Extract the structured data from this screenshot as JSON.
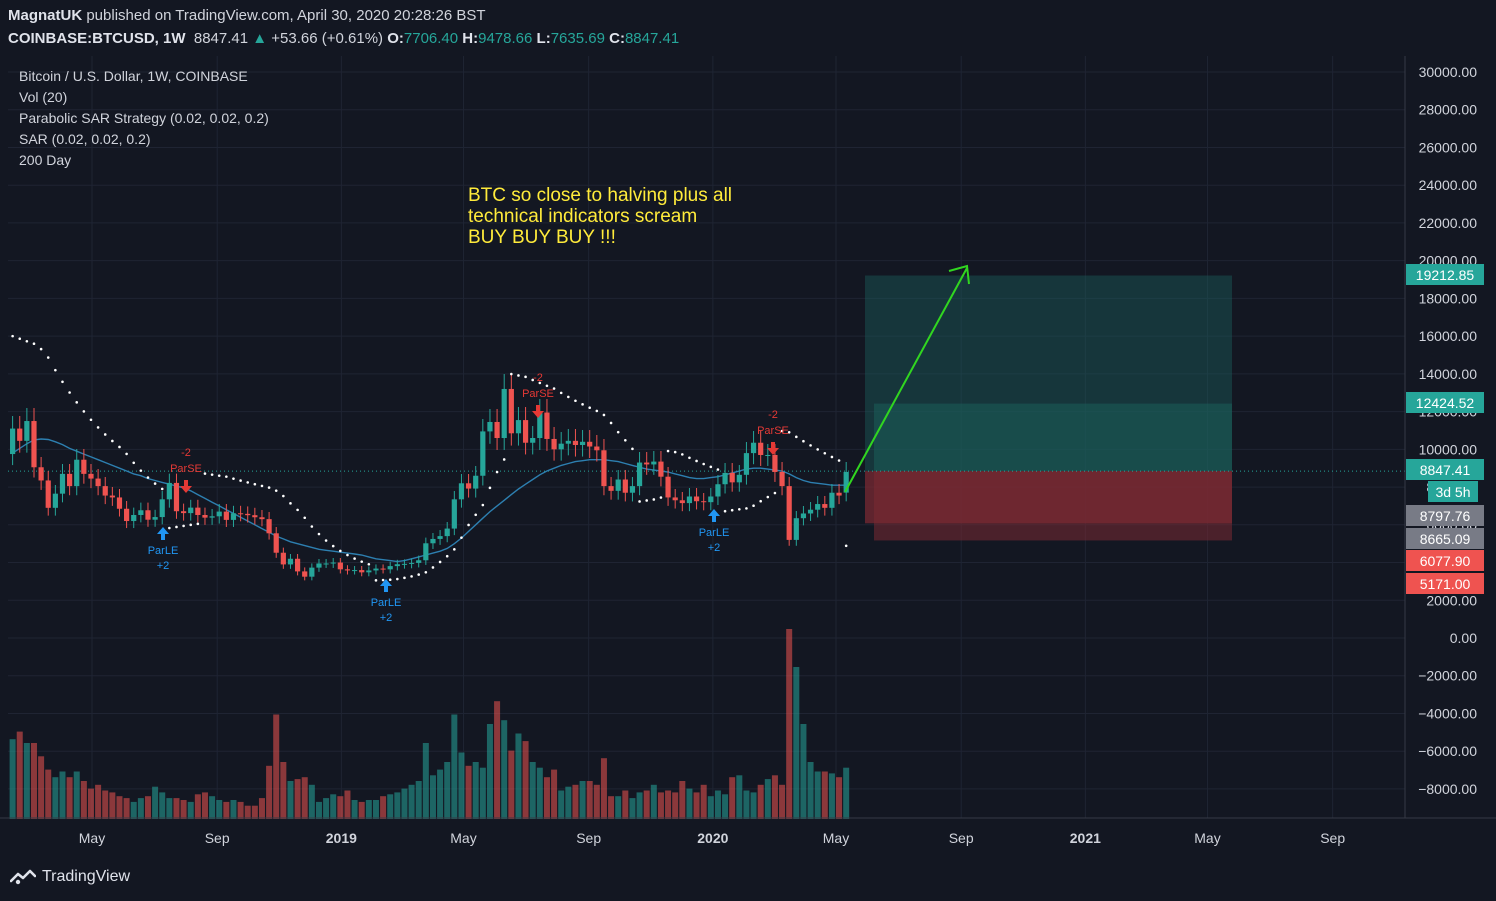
{
  "header": {
    "author": "MagnatUK",
    "published_text": "published on TradingView.com, April 30, 2020 20:28:26 BST",
    "symbol": "COINBASE:BTCUSD, 1W",
    "price": "8847.41",
    "change": "+53.66 (+0.61%)",
    "o_label": "O:",
    "o_value": "7706.40",
    "h_label": "H:",
    "h_value": "9478.66",
    "l_label": "L:",
    "l_value": "7635.69",
    "c_label": "C:",
    "c_value": "8847.41"
  },
  "legend": [
    "Bitcoin / U.S. Dollar, 1W, COINBASE",
    "Vol (20)",
    "Parabolic SAR Strategy (0.02, 0.02, 0.2)",
    "SAR (0.02, 0.02, 0.2)",
    "200 Day"
  ],
  "annotation": {
    "lines": [
      "BTC so close to halving plus all",
      "technical indicators scream",
      "BUY BUY BUY !!!"
    ],
    "color": "#ffeb3b"
  },
  "colors": {
    "up": "#26a69a",
    "down": "#ef5350",
    "ma": "#2d7fb0",
    "target_zone": "#1b5e5a",
    "stop_zone": "#7a2a33",
    "arrow": "#31d620",
    "signal_long": "#2196f3",
    "signal_short": "#e53935"
  },
  "signals": {
    "long_label": "ParLE",
    "long_qty": "+2",
    "short_label": "ParSE",
    "short_qty": "-2"
  },
  "price_badges": [
    {
      "value": "19212.85",
      "color": "#26a69a"
    },
    {
      "value": "12424.52",
      "color": "#26a69a"
    },
    {
      "value": "8847.41",
      "color": "#26a69a"
    },
    {
      "value": "3d 5h",
      "color": "#26a69a"
    },
    {
      "value": "8797.76",
      "color": "#787b86"
    },
    {
      "value": "8665.09",
      "color": "#787b86"
    },
    {
      "value": "6077.90",
      "color": "#ef5350"
    },
    {
      "value": "5171.00",
      "color": "#ef5350"
    }
  ],
  "footer": {
    "brand": "TradingView"
  },
  "chart_data": {
    "type": "candlestick",
    "title": "Bitcoin / U.S. Dollar, 1W, COINBASE",
    "ylim": [
      -9500,
      31000
    ],
    "y_ticks": [
      "30000.00",
      "28000.00",
      "26000.00",
      "24000.00",
      "22000.00",
      "20000.00",
      "18000.00",
      "16000.00",
      "14000.00",
      "12000.00",
      "10000.00",
      "8000.00",
      "6000.00",
      "4000.00",
      "2000.00",
      "0.00",
      "−2000.00",
      "−4000.00",
      "−6000.00",
      "−8000.00"
    ],
    "x_ticks": [
      {
        "label": "May",
        "date": "2018-05-01",
        "bold": false
      },
      {
        "label": "Sep",
        "date": "2018-09-01",
        "bold": false
      },
      {
        "label": "2019",
        "date": "2019-01-01",
        "bold": true
      },
      {
        "label": "May",
        "date": "2019-05-01",
        "bold": false
      },
      {
        "label": "Sep",
        "date": "2019-09-01",
        "bold": false
      },
      {
        "label": "2020",
        "date": "2020-01-01",
        "bold": true
      },
      {
        "label": "May",
        "date": "2020-05-01",
        "bold": false
      },
      {
        "label": "Sep",
        "date": "2020-09-01",
        "bold": false
      },
      {
        "label": "2021",
        "date": "2021-01-01",
        "bold": true
      },
      {
        "label": "May",
        "date": "2021-05-01",
        "bold": false
      },
      {
        "label": "Sep",
        "date": "2021-09-01",
        "bold": false
      }
    ],
    "candle_start": "2018-02-12",
    "candle_interval_days": 7,
    "close": [
      11100,
      10450,
      11500,
      9050,
      8350,
      6900,
      7650,
      8700,
      8050,
      9450,
      8700,
      8450,
      8050,
      7550,
      7450,
      6850,
      6200,
      6520,
      6770,
      6270,
      6410,
      7350,
      8220,
      6720,
      6620,
      6910,
      6520,
      6380,
      6450,
      6700,
      6260,
      6610,
      6580,
      6510,
      6400,
      6300,
      5550,
      4520,
      3900,
      4200,
      3530,
      3250,
      3730,
      3950,
      3950,
      4000,
      3640,
      3580,
      3600,
      3480,
      3580,
      3680,
      3640,
      3810,
      3910,
      3930,
      3980,
      4120,
      5020,
      5250,
      5400,
      5800,
      7350,
      8200,
      7920,
      8600,
      10950,
      11450,
      10600,
      13200,
      10850,
      11550,
      10350,
      10600,
      11950,
      10550,
      10000,
      10300,
      10450,
      10230,
      10400,
      10150,
      9950,
      8050,
      7800,
      8400,
      7700,
      8050,
      9300,
      9200,
      9350,
      8550,
      7450,
      7300,
      7150,
      7500,
      7250,
      7200,
      7500,
      8150,
      8750,
      8250,
      8650,
      9800,
      10350,
      9700,
      9700,
      8800,
      8050,
      5200,
      6350,
      6600,
      6800,
      7100,
      6900,
      7700,
      7550,
      8800
    ],
    "open": [
      9750,
      11100,
      10450,
      11500,
      9050,
      8350,
      6900,
      7650,
      8700,
      8050,
      9450,
      8700,
      8450,
      8050,
      7550,
      7450,
      6850,
      6200,
      6520,
      6770,
      6270,
      6410,
      7350,
      8220,
      6720,
      6620,
      6910,
      6520,
      6380,
      6450,
      6700,
      6260,
      6610,
      6580,
      6510,
      6400,
      6300,
      5550,
      4520,
      3900,
      4200,
      3530,
      3250,
      3730,
      3950,
      3950,
      4000,
      3640,
      3580,
      3600,
      3480,
      3580,
      3680,
      3640,
      3810,
      3910,
      3930,
      3980,
      4120,
      5020,
      5250,
      5400,
      5800,
      7350,
      8200,
      7920,
      8600,
      10950,
      11450,
      10600,
      13200,
      10850,
      11550,
      10350,
      10600,
      11950,
      10550,
      10000,
      10300,
      10450,
      10230,
      10400,
      10150,
      9950,
      8050,
      7800,
      8400,
      7700,
      8050,
      9300,
      9200,
      9350,
      8550,
      7450,
      7300,
      7150,
      7500,
      7250,
      7200,
      7500,
      8150,
      8750,
      8250,
      8650,
      9800,
      10350,
      9700,
      9700,
      8800,
      8050,
      5200,
      6350,
      6600,
      6800,
      7100,
      6900,
      7700,
      7706
    ],
    "volume_relative": [
      0.42,
      0.46,
      0.4,
      0.4,
      0.33,
      0.26,
      0.22,
      0.25,
      0.22,
      0.25,
      0.2,
      0.16,
      0.18,
      0.15,
      0.14,
      0.12,
      0.11,
      0.09,
      0.11,
      0.12,
      0.17,
      0.14,
      0.11,
      0.11,
      0.1,
      0.09,
      0.13,
      0.14,
      0.12,
      0.1,
      0.09,
      0.1,
      0.09,
      0.07,
      0.07,
      0.11,
      0.28,
      0.55,
      0.3,
      0.2,
      0.21,
      0.22,
      0.18,
      0.09,
      0.11,
      0.13,
      0.12,
      0.15,
      0.1,
      0.09,
      0.1,
      0.1,
      0.12,
      0.13,
      0.14,
      0.16,
      0.18,
      0.2,
      0.4,
      0.23,
      0.26,
      0.3,
      0.55,
      0.35,
      0.28,
      0.3,
      0.27,
      0.5,
      0.62,
      0.52,
      0.36,
      0.45,
      0.41,
      0.3,
      0.27,
      0.22,
      0.26,
      0.15,
      0.17,
      0.18,
      0.2,
      0.2,
      0.18,
      0.32,
      0.12,
      0.12,
      0.15,
      0.11,
      0.14,
      0.15,
      0.18,
      0.14,
      0.15,
      0.14,
      0.2,
      0.16,
      0.14,
      0.18,
      0.12,
      0.15,
      0.13,
      0.22,
      0.23,
      0.15,
      0.14,
      0.18,
      0.21,
      0.23,
      0.18,
      1.0,
      0.8,
      0.5,
      0.3,
      0.25,
      0.25,
      0.24,
      0.22,
      0.27
    ],
    "ma_200day": [
      9800,
      10050,
      10300,
      10500,
      10550,
      10520,
      10400,
      10250,
      10050,
      9900,
      9750,
      9600,
      9450,
      9300,
      9150,
      9000,
      8850,
      8700,
      8600,
      8450,
      8350,
      8250,
      8150,
      8050,
      7950,
      7800,
      7600,
      7400,
      7200,
      7000,
      6800,
      6600,
      6400,
      6200,
      6000,
      5800,
      5600,
      5400,
      5250,
      5100,
      5000,
      4900,
      4800,
      4700,
      4650,
      4600,
      4550,
      4500,
      4450,
      4400,
      4300,
      4200,
      4150,
      4100,
      4050,
      4100,
      4200,
      4300,
      4400,
      4500,
      4600,
      4750,
      5000,
      5300,
      5650,
      6000,
      6350,
      6700,
      7000,
      7300,
      7600,
      7900,
      8150,
      8400,
      8650,
      8850,
      9000,
      9150,
      9250,
      9350,
      9400,
      9450,
      9450,
      9450,
      9400,
      9350,
      9250,
      9150,
      9050,
      8950,
      8900,
      8850,
      8800,
      8700,
      8600,
      8500,
      8450,
      8450,
      8500,
      8550,
      8650,
      8750,
      8850,
      8950,
      9000,
      9000,
      8950,
      8900,
      8850,
      8700,
      8500,
      8350,
      8250,
      8200,
      8150,
      8100,
      8100,
      8100
    ],
    "trade_plan": {
      "entry": 8847.41,
      "target": 19212.85,
      "target_2": 12424.52,
      "stop": 6077.9,
      "stop_2": 5171.0,
      "levels": [
        8797.76,
        8665.09
      ]
    }
  }
}
